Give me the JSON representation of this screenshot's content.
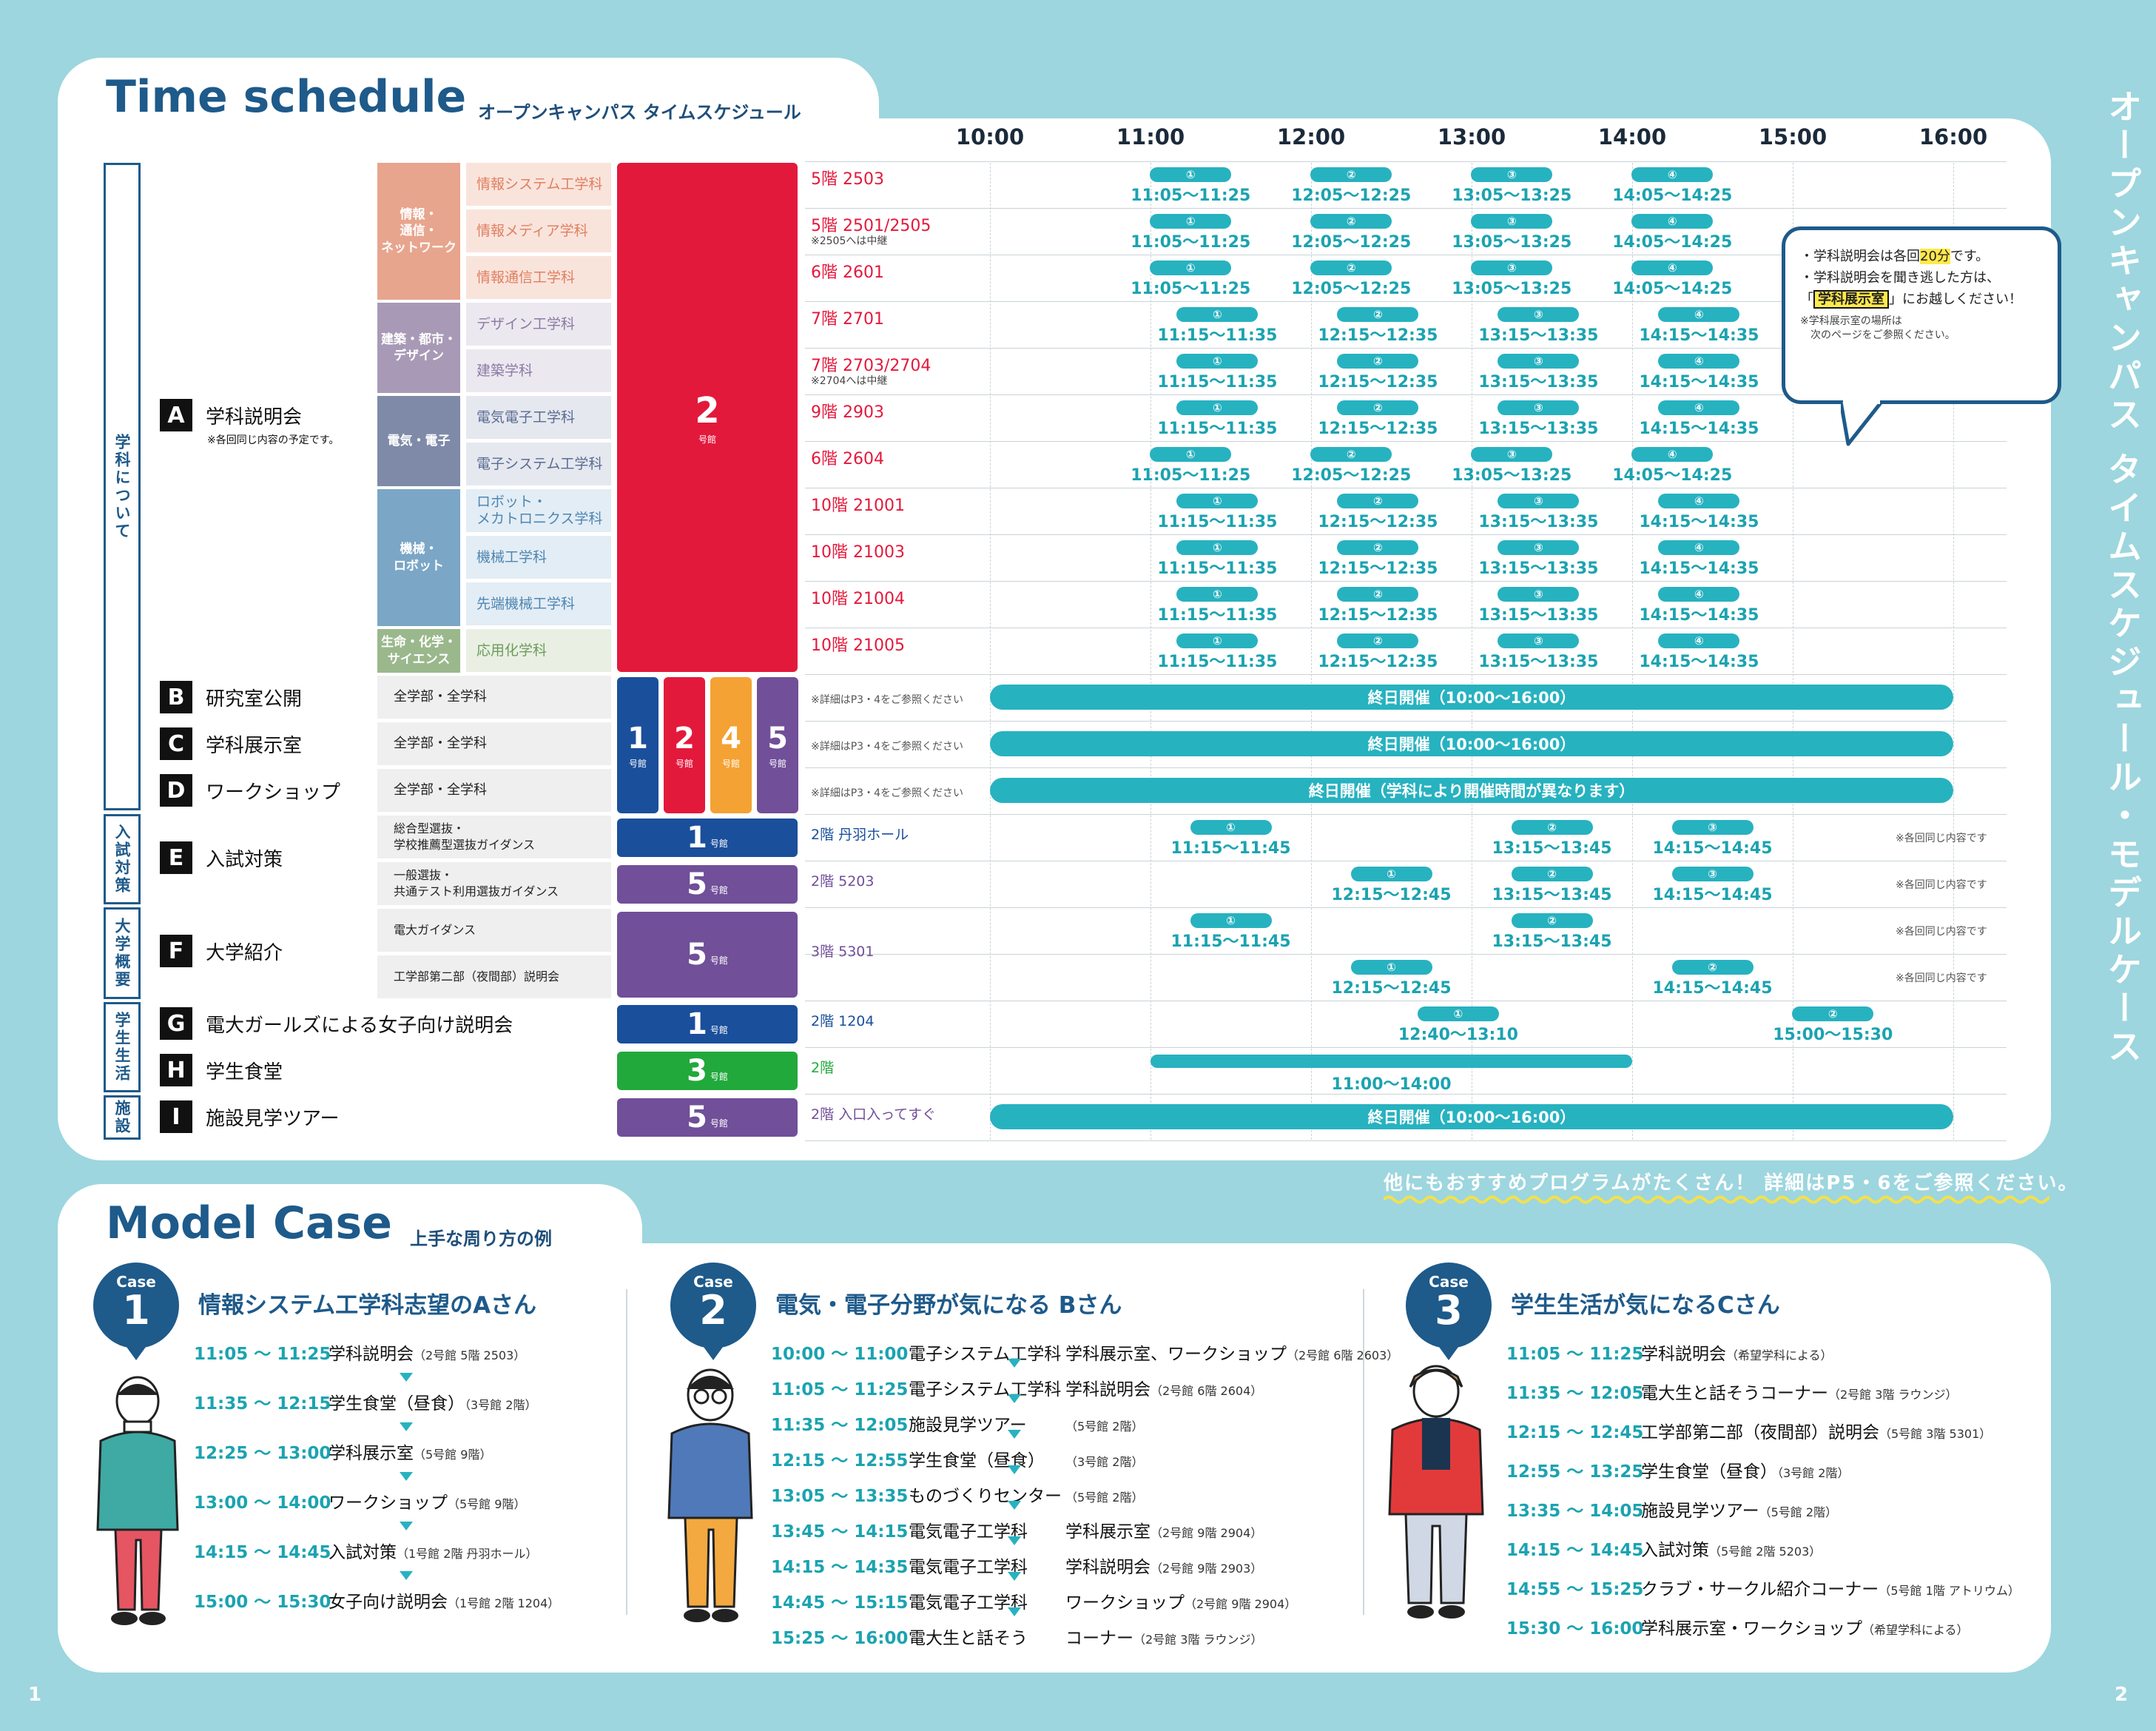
{
  "title": "Time schedule",
  "subtitle": "オープンキャンパス タイムスケジュール",
  "vertical_title": "オープンキャンパス タイムスケジュール・モデルケース",
  "hours": [
    "10:00",
    "11:00",
    "12:00",
    "13:00",
    "14:00",
    "15:00",
    "16:00"
  ],
  "side_labels": {
    "about": "学科について",
    "exam": "入試対策",
    "intro": "大学概要",
    "life": "学生生活",
    "facility": "施設"
  },
  "sections": {
    "A": {
      "letter": "A",
      "name": "学科説明会",
      "note": "※各回同じ内容の予定です。"
    },
    "B": {
      "letter": "B",
      "name": "研究室公開",
      "target": "全学部・全学科",
      "ref": "※詳細はP3・4をご参照ください",
      "bar": "終日開催（10:00〜16:00）"
    },
    "C": {
      "letter": "C",
      "name": "学科展示室",
      "target": "全学部・全学科",
      "ref": "※詳細はP3・4をご参照ください",
      "bar": "終日開催（10:00〜16:00）"
    },
    "D": {
      "letter": "D",
      "name": "ワークショップ",
      "target": "全学部・全学科",
      "ref": "※詳細はP3・4をご参照ください",
      "bar": "終日開催（学科により開催時間が異なります）"
    },
    "E": {
      "letter": "E",
      "name": "入試対策",
      "t1": "総合型選抜・<br>学校推薦型選抜ガイダンス",
      "t2": "一般選抜・<br>共通テスト利用選抜ガイダンス",
      "r1": "2階 丹羽ホール",
      "r2": "2階 5203",
      "note": "※各回同じ内容です"
    },
    "F": {
      "letter": "F",
      "name": "大学紹介",
      "t1": "電大ガイダンス",
      "t2": "工学部第二部（夜間部）説明会",
      "r1": "3階 5301",
      "note": "※各回同じ内容です"
    },
    "G": {
      "letter": "G",
      "name": "電大ガールズによる女子向け説明会",
      "r1": "2階 1204"
    },
    "H": {
      "letter": "H",
      "name": "学生食堂",
      "r1": "2階",
      "bar": "11:00〜14:00"
    },
    "I": {
      "letter": "I",
      "name": "施設見学ツアー",
      "r1": "2階 入口入ってすぐ",
      "bar": "終日開催（10:00〜16:00）"
    }
  },
  "groups": [
    {
      "name": "情報・<br>通信・<br>ネットワーク",
      "color": "#e8a58e"
    },
    {
      "name": "建築・都市・<br>デザイン",
      "color": "#a89ab6"
    },
    {
      "name": "電気・電子",
      "color": "#7f8aa8"
    },
    {
      "name": "機械・<br>ロボット",
      "color": "#7ba6c6"
    },
    {
      "name": "生命・化学・<br>サイエンス",
      "color": "#9ab88c"
    }
  ],
  "departments": [
    {
      "name": "情報システム工学科",
      "room": "5階 2503",
      "sub": "",
      "color": "#e07f5f",
      "bg": "#f9e4dc",
      "kind": "a"
    },
    {
      "name": "情報メディア学科",
      "room": "5階 2501/2505",
      "sub": "※2505へは中継",
      "color": "#e07f5f",
      "bg": "#f9e4dc",
      "kind": "a"
    },
    {
      "name": "情報通信工学科",
      "room": "6階 2601",
      "sub": "",
      "color": "#e07f5f",
      "bg": "#f9e4dc",
      "kind": "a"
    },
    {
      "name": "デザイン工学科",
      "room": "7階 2701",
      "sub": "",
      "color": "#8b7aa4",
      "bg": "#ece8f0",
      "kind": "b"
    },
    {
      "name": "建築学科",
      "room": "7階 2703/2704",
      "sub": "※2704へは中継",
      "color": "#8b7aa4",
      "bg": "#ece8f0",
      "kind": "b"
    },
    {
      "name": "電気電子工学科",
      "room": "9階 2903",
      "sub": "",
      "color": "#5a6c91",
      "bg": "#e5e8ef",
      "kind": "b"
    },
    {
      "name": "電子システム工学科",
      "room": "6階 2604",
      "sub": "",
      "color": "#5a6c91",
      "bg": "#e5e8ef",
      "kind": "a"
    },
    {
      "name": "ロボット・<br>メカトロニクス学科",
      "room": "10階 21001",
      "sub": "",
      "color": "#4e86b3",
      "bg": "#e3edf5",
      "kind": "b"
    },
    {
      "name": "機械工学科",
      "room": "10階 21003",
      "sub": "",
      "color": "#4e86b3",
      "bg": "#e3edf5",
      "kind": "b"
    },
    {
      "name": "先端機械工学科",
      "room": "10階 21004",
      "sub": "",
      "color": "#4e86b3",
      "bg": "#e3edf5",
      "kind": "b"
    },
    {
      "name": "応用化学科",
      "room": "10階 21005",
      "sub": "",
      "color": "#6e9a5c",
      "bg": "#e9f0e3",
      "kind": "b"
    }
  ],
  "session_times": {
    "a": [
      "11:05〜11:25",
      "12:05〜12:25",
      "13:05〜13:25",
      "14:05〜14:25"
    ],
    "b": [
      "11:15〜11:35",
      "12:15〜12:35",
      "13:15〜13:35",
      "14:15〜14:35"
    ]
  },
  "session_nums": [
    "①",
    "②",
    "③",
    "④"
  ],
  "e_sessions": {
    "r1": [
      "11:15〜11:45",
      "13:15〜13:45",
      "14:15〜14:45"
    ],
    "r2": [
      "12:15〜12:45",
      "13:15〜13:45",
      "14:15〜14:45"
    ]
  },
  "f_sessions": {
    "r1": [
      "11:15〜11:45",
      "13:15〜13:45"
    ],
    "r2": [
      "12:15〜12:45",
      "14:15〜14:45"
    ]
  },
  "g_sessions": [
    "12:40〜13:10",
    "15:00〜15:30"
  ],
  "buildings": {
    "A": "2",
    "B": [
      "1",
      "2",
      "4",
      "5"
    ],
    "E1": "1",
    "E2": "5",
    "F": "5",
    "G": "1",
    "H": "3",
    "I": "5",
    "suffix": "号館"
  },
  "colors": {
    "b1": "#1a4f9b",
    "b2": "#e3193c",
    "b3": "#21a93c",
    "b4": "#f4a233",
    "b5": "#714f99",
    "teal": "#27b2c0",
    "navy": "#1e5a8a"
  },
  "bubble": {
    "l1a": "・学科説明会は各回",
    "l1b": "20分",
    "l1c": "です。",
    "l2": "・学科説明会を聞き逃した方は、",
    "l3a": "「",
    "l3b": "学科展示室",
    "l3c": "」にお越しください！",
    "l4": "※学科展示室の場所は<br>　次のページをご参照ください。"
  },
  "recommend": "他にもおすすめプログラムがたくさん！ 詳細はP5・6をご参照ください。",
  "mc_title": "Model Case",
  "mc_subtitle": "上手な周り方の例",
  "case_label": "Case",
  "cases": [
    {
      "num": "1",
      "title": "情報システム工学科志望のAさん",
      "rows": [
        {
          "time": "11:05 〜 11:25",
          "text": "学科説明会",
          "sub": "（2号館 5階 2503）"
        },
        {
          "time": "11:35 〜 12:15",
          "text": "学生食堂（昼食）",
          "sub": "（3号館 2階）"
        },
        {
          "time": "12:25 〜 13:00",
          "text": "学科展示室",
          "sub": "（5号館 9階）"
        },
        {
          "time": "13:00 〜 14:00",
          "text": "ワークショップ",
          "sub": "（5号館 9階）"
        },
        {
          "time": "14:15 〜 14:45",
          "text": "入試対策",
          "sub": "（1号館 2階 丹羽ホール）"
        },
        {
          "time": "15:00 〜 15:30",
          "text": "女子向け説明会",
          "sub": "（1号館 2階 1204）"
        }
      ]
    },
    {
      "num": "2",
      "title": "電気・電子分野が気になる Bさん",
      "rows": [
        {
          "time": "10:00 〜 11:00",
          "a": "電子システム工学科",
          "b": "学科展示室、ワークショップ",
          "sub": "（2号館 6階 2603）"
        },
        {
          "time": "11:05 〜 11:25",
          "a": "電子システム工学科",
          "b": "学科説明会",
          "sub": "（2号館 6階 2604）"
        },
        {
          "time": "11:35 〜 12:05",
          "a": "施設見学ツアー",
          "b": "",
          "sub": "（5号館 2階）"
        },
        {
          "time": "12:15 〜 12:55",
          "a": "学生食堂（昼食）",
          "b": "",
          "sub": "（3号館 2階）"
        },
        {
          "time": "13:05 〜 13:35",
          "a": "ものづくりセンター",
          "b": "",
          "sub": "（5号館 2階）"
        },
        {
          "time": "13:45 〜 14:15",
          "a": "電気電子工学科",
          "b": "学科展示室",
          "sub": "（2号館 9階 2904）"
        },
        {
          "time": "14:15 〜 14:35",
          "a": "電気電子工学科",
          "b": "学科説明会",
          "sub": "（2号館 9階 2903）"
        },
        {
          "time": "14:45 〜 15:15",
          "a": "電気電子工学科",
          "b": "ワークショップ",
          "sub": "（2号館 9階 2904）"
        },
        {
          "time": "15:25 〜 16:00",
          "a": "電大生と話そう",
          "b": "コーナー",
          "sub": "（2号館 3階 ラウンジ）"
        }
      ]
    },
    {
      "num": "3",
      "title": "学生生活が気になるCさん",
      "rows": [
        {
          "time": "11:05 〜 11:25",
          "text": "学科説明会",
          "sub": "（希望学科による）"
        },
        {
          "time": "11:35 〜 12:05",
          "text": "電大生と話そうコーナー",
          "sub": "（2号館 3階 ラウンジ）"
        },
        {
          "time": "12:15 〜 12:45",
          "text": "工学部第二部（夜間部）説明会",
          "sub": "（5号館 3階 5301）"
        },
        {
          "time": "12:55 〜 13:25",
          "text": "学生食堂（昼食）",
          "sub": "（3号館 2階）"
        },
        {
          "time": "13:35 〜 14:05",
          "text": "施設見学ツアー",
          "sub": "（5号館 2階）"
        },
        {
          "time": "14:15 〜 14:45",
          "text": "入試対策",
          "sub": "（5号館 2階 5203）"
        },
        {
          "time": "14:55 〜 15:25",
          "text": "クラブ・サークル紹介コーナー",
          "sub": "（5号館 1階 アトリウム）"
        },
        {
          "time": "15:30 〜 16:00",
          "text": "学科展示室・ワークショップ",
          "sub": "（希望学科による）"
        }
      ]
    }
  ],
  "page_left": "1",
  "page_right": "2"
}
